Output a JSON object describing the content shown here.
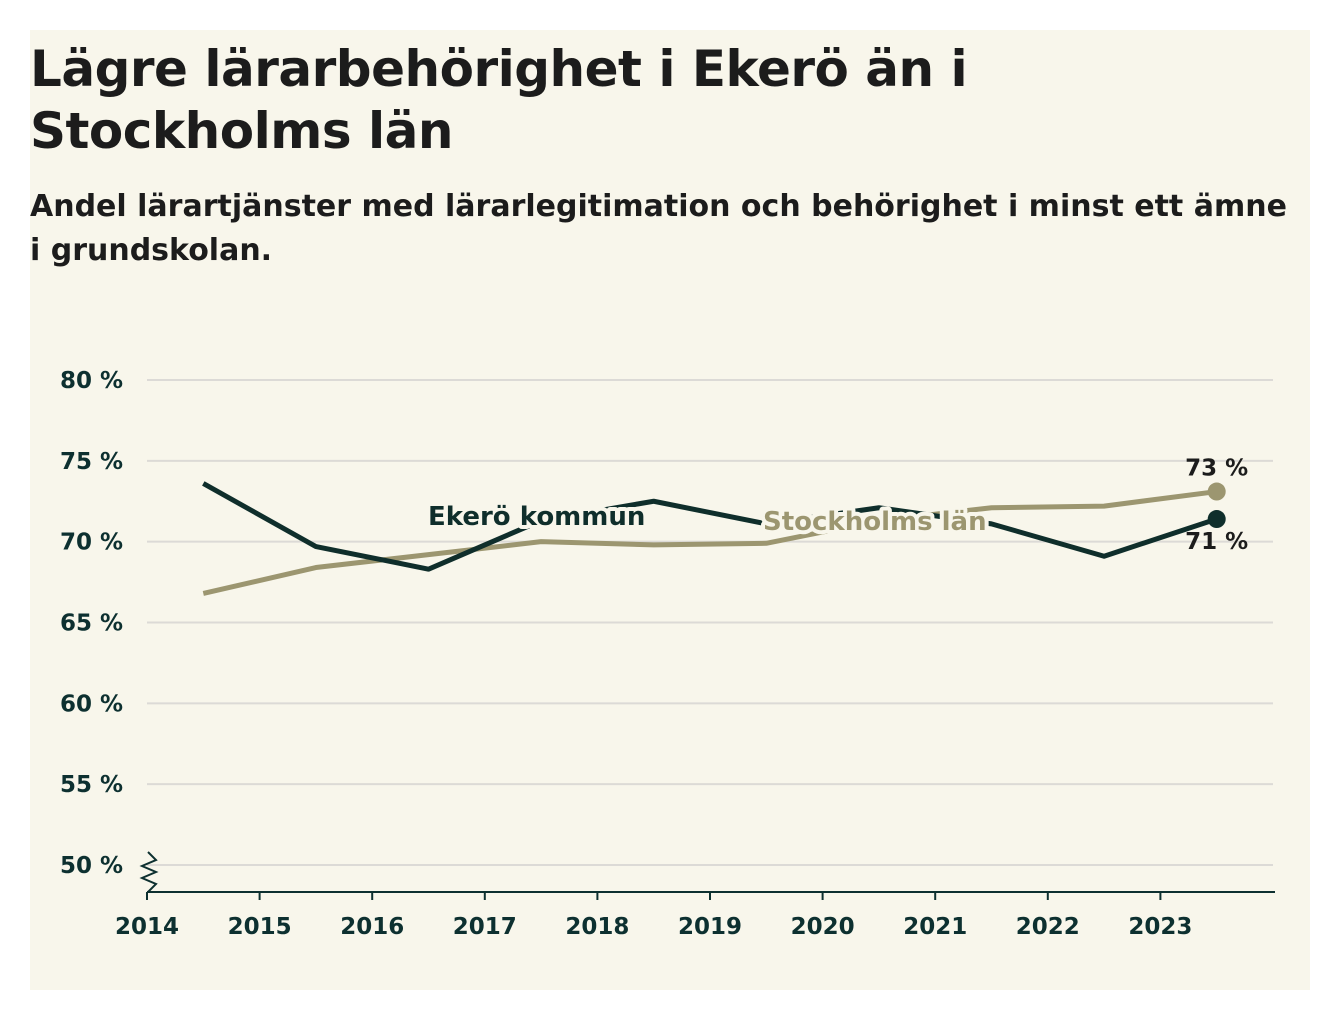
{
  "chart_data": {
    "type": "line",
    "title": "Lägre lärarbehörighet i Ekerö än i Stockholms län",
    "subtitle": "Andel lärartjänster med lärarlegitimation och behörighet i minst ett ämne i grundskolan.",
    "xlabel": "",
    "ylabel": "",
    "x_ticks": [
      "2014",
      "2015",
      "2016",
      "2017",
      "2018",
      "2019",
      "2020",
      "2021",
      "2022",
      "2023"
    ],
    "x_positions": [
      2014.5,
      2015.5,
      2016.5,
      2017.5,
      2018.5,
      2019.5,
      2020.5,
      2021.5,
      2022.5,
      2023.5
    ],
    "y_ticks": [
      50,
      55,
      60,
      65,
      70,
      75,
      80
    ],
    "y_tick_labels": [
      "50 %",
      "55 %",
      "60 %",
      "65 %",
      "70 %",
      "75 %",
      "80 %"
    ],
    "ylim": [
      50,
      80
    ],
    "y_axis_break": true,
    "grid": true,
    "series": [
      {
        "name": "Stockholms län",
        "label": "Stockholms län",
        "color": "#9c9670",
        "values": [
          66.8,
          68.4,
          69.2,
          70.0,
          69.8,
          69.9,
          71.3,
          72.1,
          72.2,
          73.1
        ],
        "end_label": "73 %"
      },
      {
        "name": "Ekerö kommun",
        "label": "Ekerö kommun",
        "color": "#0f2e2b",
        "values": [
          73.6,
          69.7,
          68.3,
          71.3,
          72.5,
          71.1,
          72.1,
          71.1,
          69.1,
          71.4
        ],
        "end_label": "71 %"
      }
    ]
  },
  "colors": {
    "background": "#f8f6eb",
    "grid": "#dcdad6",
    "axis": "#0d3030",
    "text": "#1c1c1c"
  }
}
